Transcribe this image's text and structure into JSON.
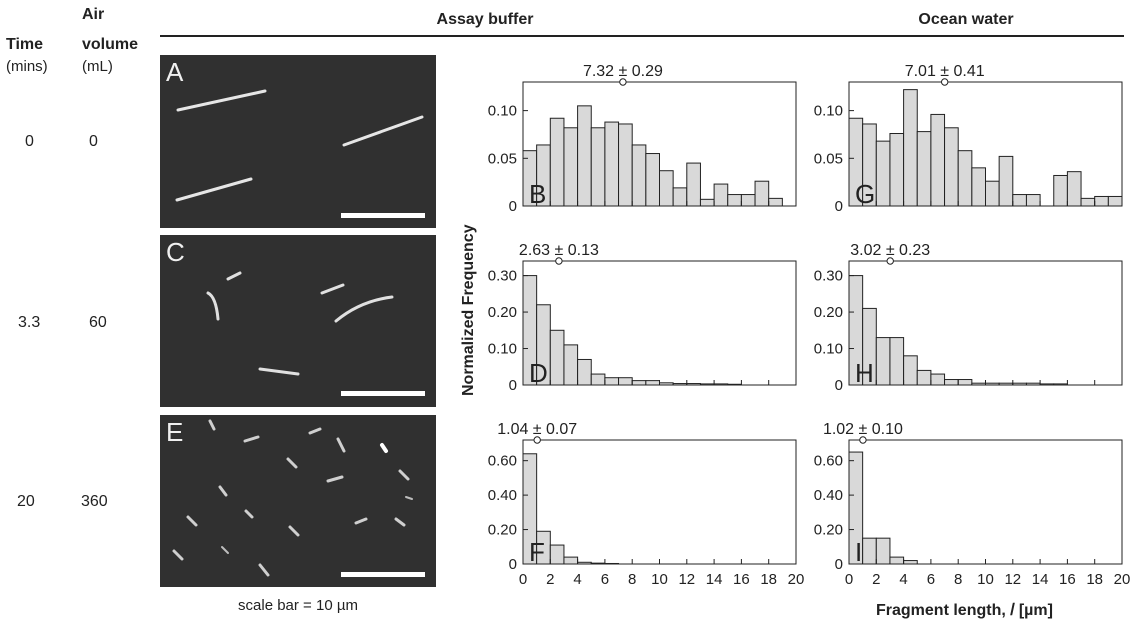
{
  "left_header": {
    "time_label": "Time",
    "time_unit": "(mins)",
    "air_label_line1": "Air",
    "air_label_line2": "volume",
    "air_unit": "(mL)"
  },
  "rows": [
    {
      "time": "0",
      "air": "0"
    },
    {
      "time": "3.3",
      "air": "60"
    },
    {
      "time": "20",
      "air": "360"
    }
  ],
  "groups": {
    "assay": "Assay buffer",
    "ocean": "Ocean water"
  },
  "image_panels": {
    "letters": [
      "A",
      "C",
      "E"
    ],
    "scale_caption": "scale bar = 10 µm"
  },
  "axis_text": {
    "ylabel": "Normalized Frequency",
    "xlabel": "Fragment length, 𝑙 [µm]"
  },
  "colors": {
    "bar_fill": "#d9d9d9",
    "bar_stroke": "#222222",
    "image_bg": "#303030"
  },
  "chart_data": [
    {
      "type": "bar",
      "letter": "B",
      "column": "Assay buffer",
      "time_mins": "0",
      "mean_label": "7.32 ± 0.29",
      "mean": 7.32,
      "bin_width": 1,
      "xlim": [
        0,
        20
      ],
      "ylim": [
        0,
        0.13
      ],
      "yticks": [
        0,
        0.05,
        0.1
      ],
      "ytick_labels": [
        "0",
        "0.05",
        "0.10"
      ],
      "xticks": [
        0,
        2,
        4,
        6,
        8,
        10,
        12,
        14,
        16,
        18,
        20
      ],
      "values": [
        0.058,
        0.064,
        0.092,
        0.082,
        0.105,
        0.082,
        0.088,
        0.086,
        0.064,
        0.055,
        0.037,
        0.019,
        0.045,
        0.007,
        0.023,
        0.012,
        0.012,
        0.026,
        0.008,
        0
      ]
    },
    {
      "type": "bar",
      "letter": "D",
      "column": "Assay buffer",
      "time_mins": "3.3",
      "mean_label": "2.63 ± 0.13",
      "mean": 2.63,
      "bin_width": 1,
      "xlim": [
        0,
        20
      ],
      "ylim": [
        0,
        0.34
      ],
      "yticks": [
        0,
        0.1,
        0.2,
        0.3
      ],
      "ytick_labels": [
        "0",
        "0.10",
        "0.20",
        "0.30"
      ],
      "xticks": [
        0,
        2,
        4,
        6,
        8,
        10,
        12,
        14,
        16,
        18,
        20
      ],
      "values": [
        0.3,
        0.22,
        0.15,
        0.11,
        0.07,
        0.03,
        0.02,
        0.02,
        0.012,
        0.012,
        0.006,
        0.004,
        0.004,
        0.003,
        0.003,
        0.002,
        0,
        0,
        0,
        0
      ]
    },
    {
      "type": "bar",
      "letter": "F",
      "column": "Assay buffer",
      "time_mins": "20",
      "mean_label": "1.04 ± 0.07",
      "mean": 1.04,
      "bin_width": 1,
      "xlim": [
        0,
        20
      ],
      "ylim": [
        0,
        0.72
      ],
      "yticks": [
        0,
        0.2,
        0.4,
        0.6
      ],
      "ytick_labels": [
        "0",
        "0.20",
        "0.40",
        "0.60"
      ],
      "xticks": [
        0,
        2,
        4,
        6,
        8,
        10,
        12,
        14,
        16,
        18,
        20
      ],
      "values": [
        0.64,
        0.19,
        0.11,
        0.04,
        0.01,
        0.005,
        0.003,
        0,
        0,
        0,
        0,
        0,
        0,
        0,
        0,
        0,
        0,
        0,
        0,
        0
      ]
    },
    {
      "type": "bar",
      "letter": "G",
      "column": "Ocean water",
      "time_mins": "0",
      "mean_label": "7.01 ± 0.41",
      "mean": 7.01,
      "bin_width": 1,
      "xlim": [
        0,
        20
      ],
      "ylim": [
        0,
        0.13
      ],
      "yticks": [
        0,
        0.05,
        0.1
      ],
      "ytick_labels": [
        "0",
        "0.05",
        "0.10"
      ],
      "xticks": [
        0,
        2,
        4,
        6,
        8,
        10,
        12,
        14,
        16,
        18,
        20
      ],
      "values": [
        0.092,
        0.086,
        0.068,
        0.076,
        0.122,
        0.078,
        0.096,
        0.082,
        0.058,
        0.04,
        0.026,
        0.052,
        0.012,
        0.012,
        0.0,
        0.032,
        0.036,
        0.008,
        0.01,
        0.01
      ]
    },
    {
      "type": "bar",
      "letter": "H",
      "column": "Ocean water",
      "time_mins": "3.3",
      "mean_label": "3.02 ± 0.23",
      "mean": 3.02,
      "bin_width": 1,
      "xlim": [
        0,
        20
      ],
      "ylim": [
        0,
        0.34
      ],
      "yticks": [
        0,
        0.1,
        0.2,
        0.3
      ],
      "ytick_labels": [
        "0",
        "0.10",
        "0.20",
        "0.30"
      ],
      "xticks": [
        0,
        2,
        4,
        6,
        8,
        10,
        12,
        14,
        16,
        18,
        20
      ],
      "values": [
        0.3,
        0.21,
        0.13,
        0.13,
        0.08,
        0.04,
        0.03,
        0.015,
        0.015,
        0.005,
        0.005,
        0.005,
        0.005,
        0.005,
        0.003,
        0.003,
        0,
        0,
        0,
        0
      ]
    },
    {
      "type": "bar",
      "letter": "I",
      "column": "Ocean water",
      "time_mins": "20",
      "mean_label": "1.02 ± 0.10",
      "mean": 1.02,
      "bin_width": 1,
      "xlim": [
        0,
        20
      ],
      "ylim": [
        0,
        0.72
      ],
      "yticks": [
        0,
        0.2,
        0.4,
        0.6
      ],
      "ytick_labels": [
        "0",
        "0.20",
        "0.40",
        "0.60"
      ],
      "xticks": [
        0,
        2,
        4,
        6,
        8,
        10,
        12,
        14,
        16,
        18,
        20
      ],
      "values": [
        0.65,
        0.15,
        0.15,
        0.04,
        0.02,
        0,
        0,
        0,
        0,
        0,
        0,
        0,
        0,
        0,
        0,
        0,
        0,
        0,
        0,
        0
      ]
    }
  ]
}
